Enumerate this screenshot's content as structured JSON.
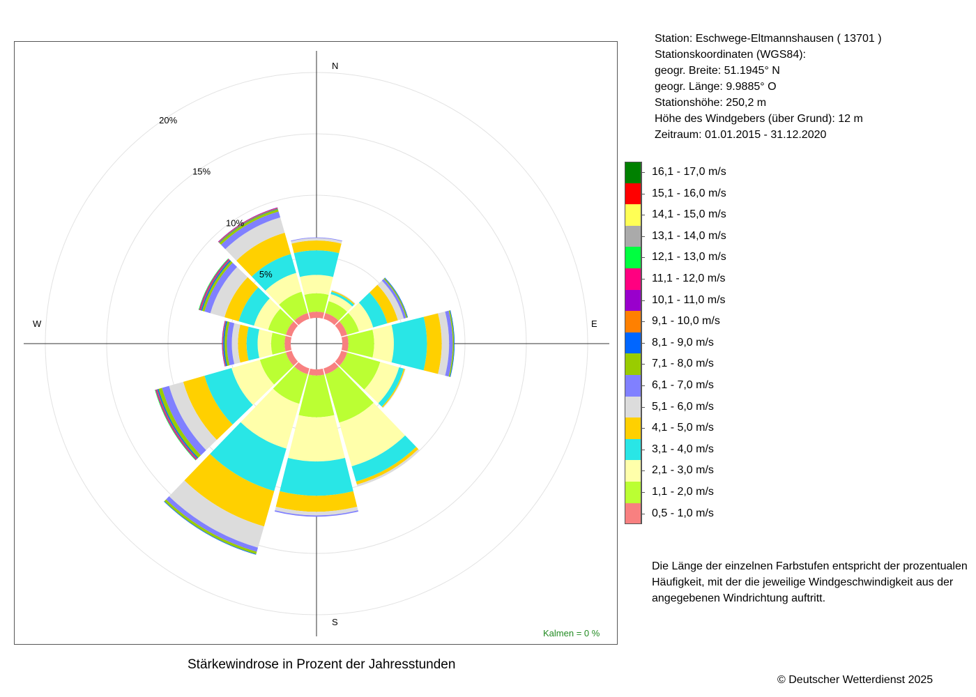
{
  "chart_data": {
    "type": "wind-rose",
    "title": "Stärkewindrose in Prozent der Jahresstunden",
    "unit": "%",
    "radial_ticks": [
      {
        "value": 5,
        "label": "5%"
      },
      {
        "value": 10,
        "label": "10%"
      },
      {
        "value": 15,
        "label": "15%"
      },
      {
        "value": 20,
        "label": "20%"
      }
    ],
    "radial_max": 20,
    "compass_labels": {
      "N": "N",
      "E": "E",
      "S": "S",
      "W": "W"
    },
    "calm_text": "Kalmen  =  0 %",
    "speed_classes": [
      {
        "label": "0,5 - 1,0 m/s",
        "color": "#F88080"
      },
      {
        "label": "1,1 - 2,0 m/s",
        "color": "#BBFF33"
      },
      {
        "label": "2,1 - 3,0 m/s",
        "color": "#FFFFAA"
      },
      {
        "label": "3,1 - 4,0 m/s",
        "color": "#29E6E6"
      },
      {
        "label": "4,1 - 5,0 m/s",
        "color": "#FFD000"
      },
      {
        "label": "5,1 - 6,0 m/s",
        "color": "#DCDCDC"
      },
      {
        "label": "6,1 - 7,0 m/s",
        "color": "#8080FF"
      },
      {
        "label": "7,1 - 8,0 m/s",
        "color": "#99CC00"
      },
      {
        "label": "8,1 - 9,0 m/s",
        "color": "#0066FF"
      },
      {
        "label": "9,1 - 10,0 m/s",
        "color": "#FF8000"
      },
      {
        "label": "10,1 - 11,0 m/s",
        "color": "#9900CC"
      },
      {
        "label": "11,1 - 12,0 m/s",
        "color": "#FF0080"
      },
      {
        "label": "12,1 - 13,0 m/s",
        "color": "#00FF40"
      },
      {
        "label": "13,1 - 14,0 m/s",
        "color": "#AAAAAA"
      },
      {
        "label": "14,1 - 15,0 m/s",
        "color": "#FFFF55"
      },
      {
        "label": "15,1 - 16,0 m/s",
        "color": "#FF0000"
      },
      {
        "label": "16,1 - 17,0 m/s",
        "color": "#008000"
      }
    ],
    "directions": [
      {
        "angle": 0,
        "values": [
          0.5,
          1.5,
          1.5,
          2.0,
          0.8,
          0.2,
          0.05
        ]
      },
      {
        "angle": 30,
        "values": [
          0.5,
          1.0,
          0.6,
          0.2,
          0.1,
          0.05
        ]
      },
      {
        "angle": 60,
        "values": [
          0.5,
          1.0,
          1.2,
          1.2,
          0.9,
          0.5,
          0.2,
          0.1,
          0.05
        ]
      },
      {
        "angle": 90,
        "values": [
          0.5,
          2.1,
          1.6,
          2.7,
          1.2,
          0.6,
          0.3,
          0.1,
          0.05
        ]
      },
      {
        "angle": 120,
        "values": [
          0.5,
          2.8,
          1.6,
          0.4,
          0.1,
          0.05
        ]
      },
      {
        "angle": 150,
        "values": [
          0.5,
          4.1,
          3.7,
          1.3,
          0.25,
          0.15
        ]
      },
      {
        "angle": 180,
        "values": [
          0.5,
          3.4,
          3.6,
          2.8,
          1.3,
          0.3,
          0.1
        ]
      },
      {
        "angle": 210,
        "values": [
          0.5,
          2.5,
          3.8,
          3.6,
          3.0,
          1.8,
          0.35,
          0.2,
          0.05
        ]
      },
      {
        "angle": 240,
        "values": [
          0.5,
          2.2,
          2.4,
          2.3,
          1.8,
          1.2,
          0.6,
          0.3,
          0.1,
          0.05,
          0.05,
          0.05,
          0.05
        ]
      },
      {
        "angle": 270,
        "values": [
          0.5,
          1.1,
          1.1,
          0.9,
          0.7,
          0.5,
          0.4,
          0.2,
          0.1,
          0.05,
          0.05
        ]
      },
      {
        "angle": 300,
        "values": [
          0.5,
          1.5,
          1.2,
          1.3,
          1.2,
          1.2,
          0.5,
          0.2,
          0.1,
          0.05,
          0.05,
          0.05,
          0.05
        ]
      },
      {
        "angle": 330,
        "values": [
          0.5,
          1.8,
          1.6,
          1.6,
          1.8,
          1.3,
          0.5,
          0.2,
          0.05,
          0.05,
          0.05
        ]
      }
    ]
  },
  "info": {
    "station": "Station:  Eschwege-Eltmannshausen  ( 13701 )",
    "coords_heading": "Stationskoordinaten (WGS84):",
    "latitude": "geogr. Breite: 51.1945° N",
    "longitude": "geogr. Länge:   9.9885° O",
    "elevation": "Stationshöhe: 250,2 m",
    "sensor_height": "Höhe des Windgebers (über Grund): 12 m",
    "period": "Zeitraum: 01.01.2015 - 31.12.2020"
  },
  "note": {
    "line1": "Die Länge der einzelnen Farbstufen entspricht der prozentualen",
    "line2": "Häufigkeit, mit der die jeweilige Windgeschwindigkeit aus der",
    "line3": "angegebenen Windrichtung auftritt."
  },
  "copyright": "© Deutscher Wetterdienst  2025"
}
